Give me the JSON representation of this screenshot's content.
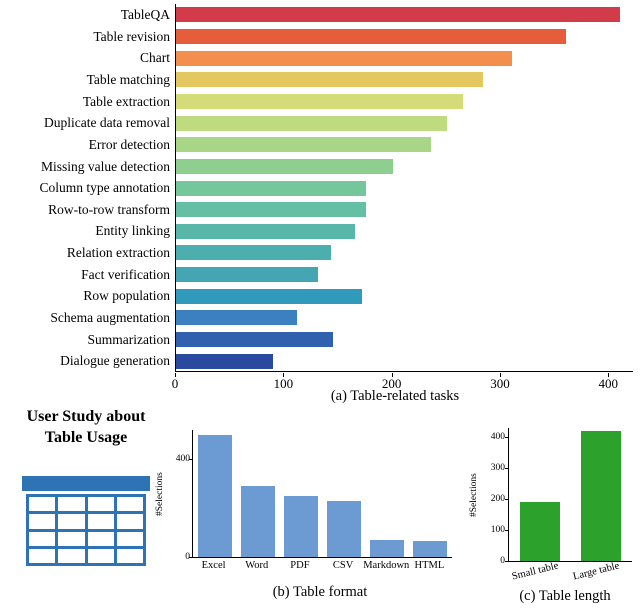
{
  "user_study": {
    "title_line1": "User Study about",
    "title_line2": "Table Usage"
  },
  "chart_data": [
    {
      "id": "table-related-tasks",
      "type": "bar",
      "orientation": "horizontal",
      "title": "(a) Table-related tasks",
      "categories": [
        "TableQA",
        "Table revision",
        "Chart",
        "Table matching",
        "Table extraction",
        "Duplicate data removal",
        "Error detection",
        "Missing value detection",
        "Column type annotation",
        "Row-to-row transform",
        "Entity linking",
        "Relation extraction",
        "Fact verification",
        "Row population",
        "Schema augmentation",
        "Summarization",
        "Dialogue generation"
      ],
      "values": [
        410,
        360,
        310,
        283,
        265,
        250,
        235,
        200,
        175,
        175,
        165,
        143,
        131,
        172,
        112,
        145,
        90
      ],
      "colors": [
        "#d13b4a",
        "#e65d3c",
        "#f28e4e",
        "#e4c75f",
        "#d4dc7a",
        "#bfdb7f",
        "#a8d588",
        "#8ecf90",
        "#74c79b",
        "#64bfa3",
        "#58b7a8",
        "#4daeae",
        "#44a6b2",
        "#2f9ab9",
        "#3c80c0",
        "#3160ae",
        "#2b4a9d"
      ],
      "xticks": [
        0,
        100,
        200,
        300,
        400
      ],
      "xlim": [
        0,
        421
      ],
      "grid": false,
      "legend": "none"
    },
    {
      "id": "table-format",
      "type": "bar",
      "orientation": "vertical",
      "title": "(b) Table format",
      "ylabel": "#Selections",
      "categories": [
        "Excel",
        "Word",
        "PDF",
        "CSV",
        "Markdown",
        "HTML"
      ],
      "values": [
        500,
        290,
        250,
        230,
        70,
        65
      ],
      "yticks": [
        0,
        400
      ],
      "ylim": [
        0,
        520
      ],
      "color": "#6b9bd2",
      "grid": false,
      "legend": "none"
    },
    {
      "id": "table-length",
      "type": "bar",
      "orientation": "vertical",
      "title": "(c) Table length",
      "ylabel": "#Selections",
      "categories": [
        "Small table",
        "Large table"
      ],
      "values": [
        190,
        420
      ],
      "yticks": [
        0,
        100,
        200,
        300,
        400
      ],
      "ylim": [
        0,
        430
      ],
      "color": "#2ca12c",
      "grid": false,
      "legend": "none"
    }
  ]
}
